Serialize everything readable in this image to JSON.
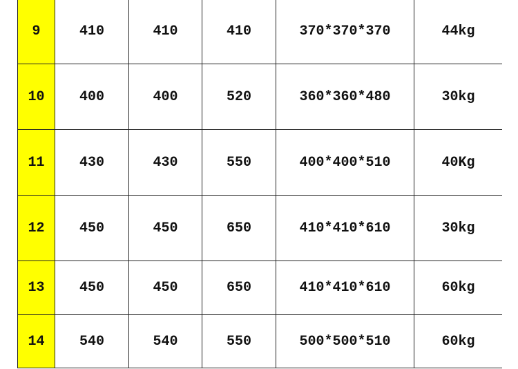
{
  "table": {
    "highlight_color": "#ffff00",
    "rows": [
      [
        "9",
        "410",
        "410",
        "410",
        "370*370*370",
        "44kg"
      ],
      [
        "10",
        "400",
        "400",
        "520",
        "360*360*480",
        "30kg"
      ],
      [
        "11",
        "430",
        "430",
        "550",
        "400*400*510",
        "40Kg"
      ],
      [
        "12",
        "450",
        "450",
        "650",
        "410*410*610",
        "30kg"
      ],
      [
        "13",
        "450",
        "450",
        "650",
        "410*410*610",
        "60kg"
      ],
      [
        "14",
        "540",
        "540",
        "550",
        "500*500*510",
        "60kg"
      ]
    ]
  }
}
